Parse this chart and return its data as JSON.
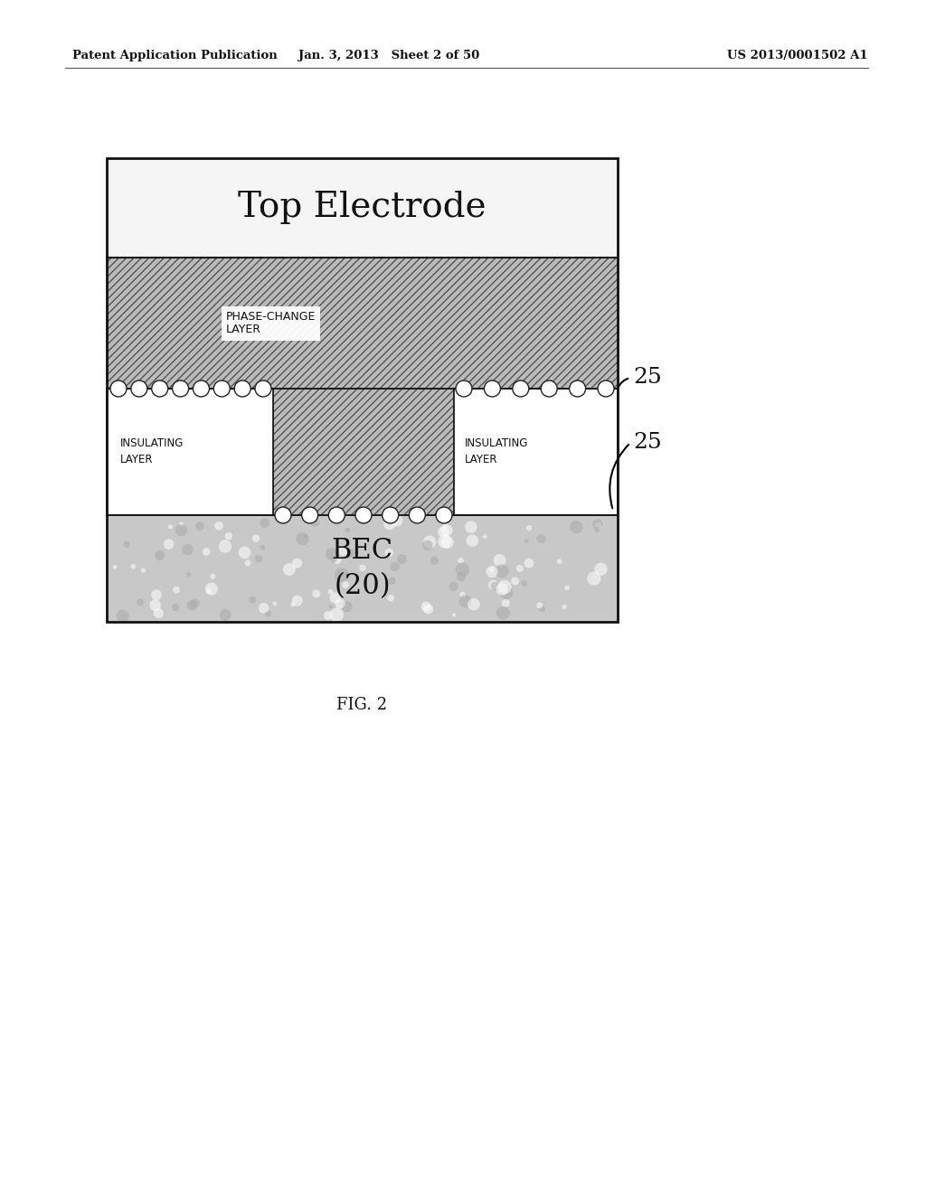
{
  "bg_color": "#ffffff",
  "header_left": "Patent Application Publication",
  "header_center": "Jan. 3, 2013   Sheet 2 of 50",
  "header_right": "US 2013/0001502 A1",
  "fig_label": "FIG. 2",
  "top_electrode_label": "Top Electrode",
  "phase_change_label": "PHASE-CHANGE\nLAYER",
  "insulating_left_label": "INSULATING\nLAYER",
  "insulating_right_label": "INSULATING\nLAYER",
  "bec_label": "BEC\n(20)",
  "label_25": "25",
  "hatch_gray": "#aaaaaa",
  "white": "#ffffff",
  "black": "#000000",
  "bec_gray": "#c8c8c8"
}
